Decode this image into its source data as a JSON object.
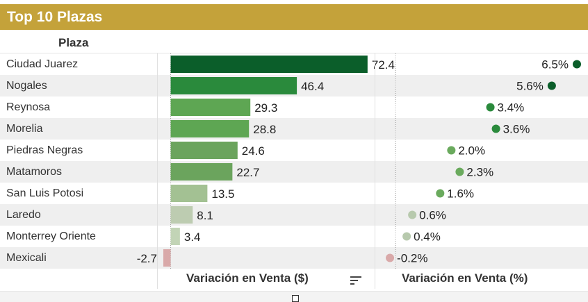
{
  "header": {
    "title": "Top 10 Plazas",
    "column_label": "Plaza"
  },
  "footer": {
    "value_column_label": "Variación en Venta ($)",
    "pct_column_label": "Variación en Venta (%)",
    "sort_icon": "sort-descending-icon"
  },
  "colors": {
    "title_bar": "#c4a23a",
    "row_alt": "#efefef",
    "positive_dark": "#0b5e2a",
    "positive_light": "#c2d4b6",
    "negative": "#d9a9a9"
  },
  "chart_data": {
    "type": "bar",
    "categories": [
      "Ciudad Juarez",
      "Nogales",
      "Reynosa",
      "Morelia",
      "Piedras Negras",
      "Matamoros",
      "San Luis Potosi",
      "Laredo",
      "Monterrey Oriente",
      "Mexicali"
    ],
    "series": [
      {
        "values": [
          72.4,
          46.4,
          29.3,
          28.8,
          24.6,
          22.7,
          13.5,
          8.1,
          3.4,
          -2.7
        ]
      },
      {
        "values": [
          6.5,
          5.6,
          3.4,
          3.6,
          2.0,
          2.3,
          1.6,
          0.6,
          0.4,
          -0.2
        ]
      }
    ],
    "value_labels": [
      "72.4",
      "46.4",
      "29.3",
      "28.8",
      "24.6",
      "22.7",
      "13.5",
      "8.1",
      "3.4",
      "-2.7"
    ],
    "pct_labels": [
      "6.5%",
      "5.6%",
      "3.4%",
      "3.6%",
      "2.0%",
      "2.3%",
      "1.6%",
      "0.6%",
      "0.4%",
      "-0.2%"
    ],
    "bar_colors": [
      "#0b5e2a",
      "#2a8a3c",
      "#5ea653",
      "#5ea653",
      "#6ba45d",
      "#6ba45d",
      "#a3c193",
      "#bdccb1",
      "#c2d4b6",
      "#d9a9a9"
    ],
    "dot_colors": [
      "#0b5e2a",
      "#0b5e2a",
      "#2a8a3c",
      "#2a8a3c",
      "#6aaa5d",
      "#6aaa5d",
      "#6aaa5d",
      "#b7c9ad",
      "#b7c9ad",
      "#d9a9a9"
    ],
    "xlim_value": [
      -5,
      75
    ],
    "xlim_pct": [
      -0.5,
      6.5
    ],
    "grid": false
  }
}
